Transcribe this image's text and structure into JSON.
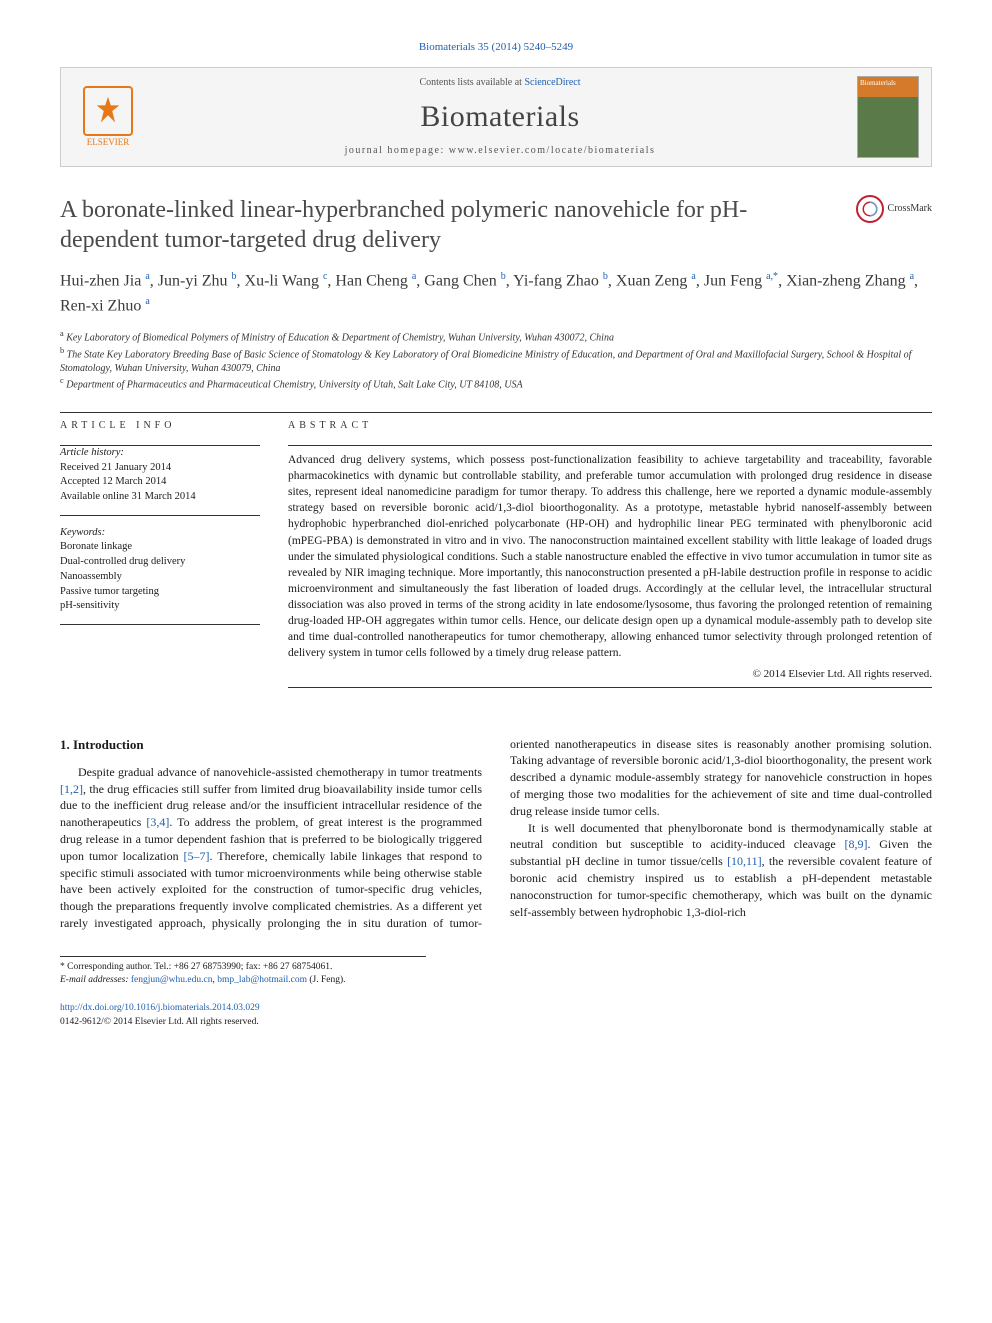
{
  "citation": "Biomaterials 35 (2014) 5240–5249",
  "masthead": {
    "publisher": "ELSEVIER",
    "contents_prefix": "Contents lists available at ",
    "contents_link": "ScienceDirect",
    "journal": "Biomaterials",
    "homepage_prefix": "journal homepage: ",
    "homepage": "www.elsevier.com/locate/biomaterials",
    "cover_label": "Biomaterials"
  },
  "crossmark_label": "CrossMark",
  "title": "A boronate-linked linear-hyperbranched polymeric nanovehicle for pH-dependent tumor-targeted drug delivery",
  "authors_html": "Hui-zhen Jia <sup>a</sup>, Jun-yi Zhu <sup>b</sup>, Xu-li Wang <sup>c</sup>, Han Cheng <sup>a</sup>, Gang Chen <sup>b</sup>, Yi-fang Zhao <sup>b</sup>, Xuan Zeng <sup>a</sup>, Jun Feng <sup>a,*</sup>, Xian-zheng Zhang <sup>a</sup>, Ren-xi Zhuo <sup>a</sup>",
  "affiliations": [
    {
      "sup": "a",
      "text": "Key Laboratory of Biomedical Polymers of Ministry of Education & Department of Chemistry, Wuhan University, Wuhan 430072, China"
    },
    {
      "sup": "b",
      "text": "The State Key Laboratory Breeding Base of Basic Science of Stomatology & Key Laboratory of Oral Biomedicine Ministry of Education, and Department of Oral and Maxillofacial Surgery, School & Hospital of Stomatology, Wuhan University, Wuhan 430079, China"
    },
    {
      "sup": "c",
      "text": "Department of Pharmaceutics and Pharmaceutical Chemistry, University of Utah, Salt Lake City, UT 84108, USA"
    }
  ],
  "info": {
    "label": "ARTICLE INFO",
    "history_head": "Article history:",
    "received": "Received 21 January 2014",
    "accepted": "Accepted 12 March 2014",
    "online": "Available online 31 March 2014",
    "keywords_head": "Keywords:",
    "keywords": [
      "Boronate linkage",
      "Dual-controlled drug delivery",
      "Nanoassembly",
      "Passive tumor targeting",
      "pH-sensitivity"
    ]
  },
  "abstract": {
    "label": "ABSTRACT",
    "text": "Advanced drug delivery systems, which possess post-functionalization feasibility to achieve targetability and traceability, favorable pharmacokinetics with dynamic but controllable stability, and preferable tumor accumulation with prolonged drug residence in disease sites, represent ideal nanomedicine paradigm for tumor therapy. To address this challenge, here we reported a dynamic module-assembly strategy based on reversible boronic acid/1,3-diol bioorthogonality. As a prototype, metastable hybrid nanoself-assembly between hydrophobic hyperbranched diol-enriched polycarbonate (HP-OH) and hydrophilic linear PEG terminated with phenylboronic acid (mPEG-PBA) is demonstrated in vitro and in vivo. The nanoconstruction maintained excellent stability with little leakage of loaded drugs under the simulated physiological conditions. Such a stable nanostructure enabled the effective in vivo tumor accumulation in tumor site as revealed by NIR imaging technique. More importantly, this nanoconstruction presented a pH-labile destruction profile in response to acidic microenvironment and simultaneously the fast liberation of loaded drugs. Accordingly at the cellular level, the intracellular structural dissociation was also proved in terms of the strong acidity in late endosome/lysosome, thus favoring the prolonged retention of remaining drug-loaded HP-OH aggregates within tumor cells. Hence, our delicate design open up a dynamical module-assembly path to develop site and time dual-controlled nanotherapeutics for tumor chemotherapy, allowing enhanced tumor selectivity through prolonged retention of delivery system in tumor cells followed by a timely drug release pattern.",
    "copyright": "© 2014 Elsevier Ltd. All rights reserved."
  },
  "intro": {
    "heading": "1. Introduction",
    "p1_a": "Despite gradual advance of nanovehicle-assisted chemotherapy in tumor treatments ",
    "p1_ref1": "[1,2]",
    "p1_b": ", the drug efficacies still suffer from limited drug bioavailability inside tumor cells due to the inefficient drug release and/or the insufficient intracellular residence of the nanotherapeutics ",
    "p1_ref2": "[3,4]",
    "p1_c": ". To address the problem, of great interest is the programmed drug release in a tumor dependent fashion that is preferred to be biologically triggered upon tumor localization ",
    "p1_ref3": "[5–7]",
    "p1_d": ". Therefore, chemically labile linkages that respond to specific stimuli associated with tumor microenvironments while being otherwise stable have been actively exploited for the construction",
    "p1_e": "of tumor-specific drug vehicles, though the preparations frequently involve complicated chemistries. As a different yet rarely investigated approach, physically prolonging the in situ duration of tumor-oriented nanotherapeutics in disease sites is reasonably another promising solution. Taking advantage of reversible boronic acid/1,3-diol bioorthogonality, the present work described a dynamic module-assembly strategy for nanovehicle construction in hopes of merging those two modalities for the achievement of site and time dual-controlled drug release inside tumor cells.",
    "p2_a": "It is well documented that phenylboronate bond is thermodynamically stable at neutral condition but susceptible to acidity-induced cleavage ",
    "p2_ref1": "[8,9]",
    "p2_b": ". Given the substantial pH decline in tumor tissue/cells ",
    "p2_ref2": "[10,11]",
    "p2_c": ", the reversible covalent feature of boronic acid chemistry inspired us to establish a pH-dependent metastable nanoconstruction for tumor-specific chemotherapy, which was built on the dynamic self-assembly between hydrophobic 1,3-diol-rich"
  },
  "footnotes": {
    "corr_label": "* Corresponding author. Tel.: +86 27 68753990; fax: +86 27 68754061.",
    "email_label": "E-mail addresses: ",
    "email1": "fengjun@whu.edu.cn",
    "email2": "bmp_lab@hotmail.com",
    "email_suffix": " (J. Feng)."
  },
  "bottom": {
    "doi": "http://dx.doi.org/10.1016/j.biomaterials.2014.03.029",
    "issn_line": "0142-9612/© 2014 Elsevier Ltd. All rights reserved."
  },
  "colors": {
    "link": "#2060b0",
    "publisher": "#e67817",
    "text": "#1a1a1a",
    "heading": "#4a4a4a"
  }
}
